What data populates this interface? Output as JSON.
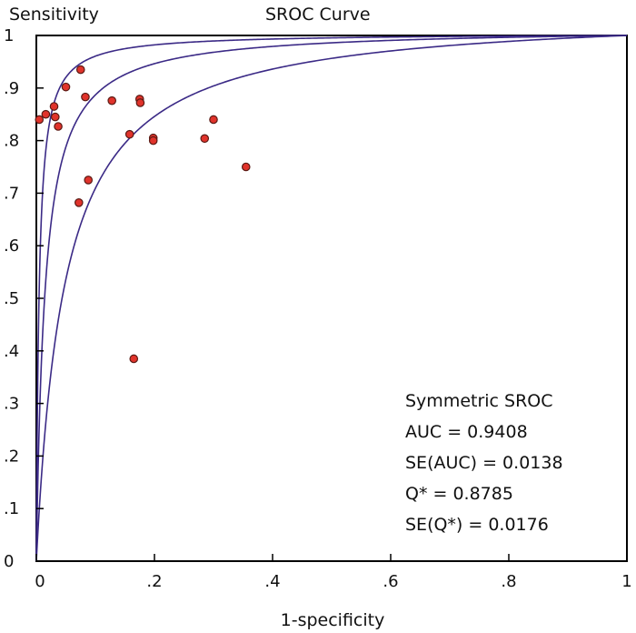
{
  "chart_data": {
    "type": "scatter",
    "title": "SROC Curve",
    "xlabel": "1-specificity",
    "ylabel": "Sensitivity",
    "xlim": [
      0,
      1
    ],
    "ylim": [
      0,
      1
    ],
    "x_ticks": [
      {
        "value": 0,
        "label": "0"
      },
      {
        "value": 0.2,
        "label": ".2"
      },
      {
        "value": 0.4,
        "label": ".4"
      },
      {
        "value": 0.6,
        "label": ".6"
      },
      {
        "value": 0.8,
        "label": ".8"
      },
      {
        "value": 1,
        "label": "1"
      }
    ],
    "y_ticks": [
      {
        "value": 0,
        "label": "0"
      },
      {
        "value": 0.1,
        "label": ".1"
      },
      {
        "value": 0.2,
        "label": ".2"
      },
      {
        "value": 0.3,
        "label": ".3"
      },
      {
        "value": 0.4,
        "label": ".4"
      },
      {
        "value": 0.5,
        "label": ".5"
      },
      {
        "value": 0.6,
        "label": ".6"
      },
      {
        "value": 0.7,
        "label": ".7"
      },
      {
        "value": 0.8,
        "label": ".8"
      },
      {
        "value": 0.9,
        "label": ".9"
      },
      {
        "value": 1,
        "label": "1"
      }
    ],
    "points": [
      {
        "x": 0.005,
        "y": 0.84
      },
      {
        "x": 0.016,
        "y": 0.85
      },
      {
        "x": 0.03,
        "y": 0.865
      },
      {
        "x": 0.032,
        "y": 0.845
      },
      {
        "x": 0.037,
        "y": 0.827
      },
      {
        "x": 0.05,
        "y": 0.902
      },
      {
        "x": 0.075,
        "y": 0.935
      },
      {
        "x": 0.083,
        "y": 0.883
      },
      {
        "x": 0.072,
        "y": 0.682
      },
      {
        "x": 0.088,
        "y": 0.725
      },
      {
        "x": 0.128,
        "y": 0.876
      },
      {
        "x": 0.158,
        "y": 0.812
      },
      {
        "x": 0.175,
        "y": 0.879
      },
      {
        "x": 0.176,
        "y": 0.872
      },
      {
        "x": 0.198,
        "y": 0.805
      },
      {
        "x": 0.198,
        "y": 0.8
      },
      {
        "x": 0.285,
        "y": 0.804
      },
      {
        "x": 0.3,
        "y": 0.84
      },
      {
        "x": 0.355,
        "y": 0.75
      },
      {
        "x": 0.165,
        "y": 0.385
      }
    ],
    "curves": [
      {
        "q_star": 0.8785,
        "role": "upper"
      },
      {
        "q_star": 0.8785,
        "role": "center"
      },
      {
        "q_star": 0.8785,
        "role": "lower"
      }
    ],
    "curve_color": "#3b2a86",
    "point_color": "#e0332b",
    "point_edge_color": "#5a1a14",
    "annotations": [
      "Symmetric SROC",
      "AUC = 0.9408",
      "SE(AUC)  = 0.0138",
      "Q* = 0.8785",
      "SE(Q*) = 0.0176"
    ],
    "grid": false,
    "legend": "none"
  }
}
